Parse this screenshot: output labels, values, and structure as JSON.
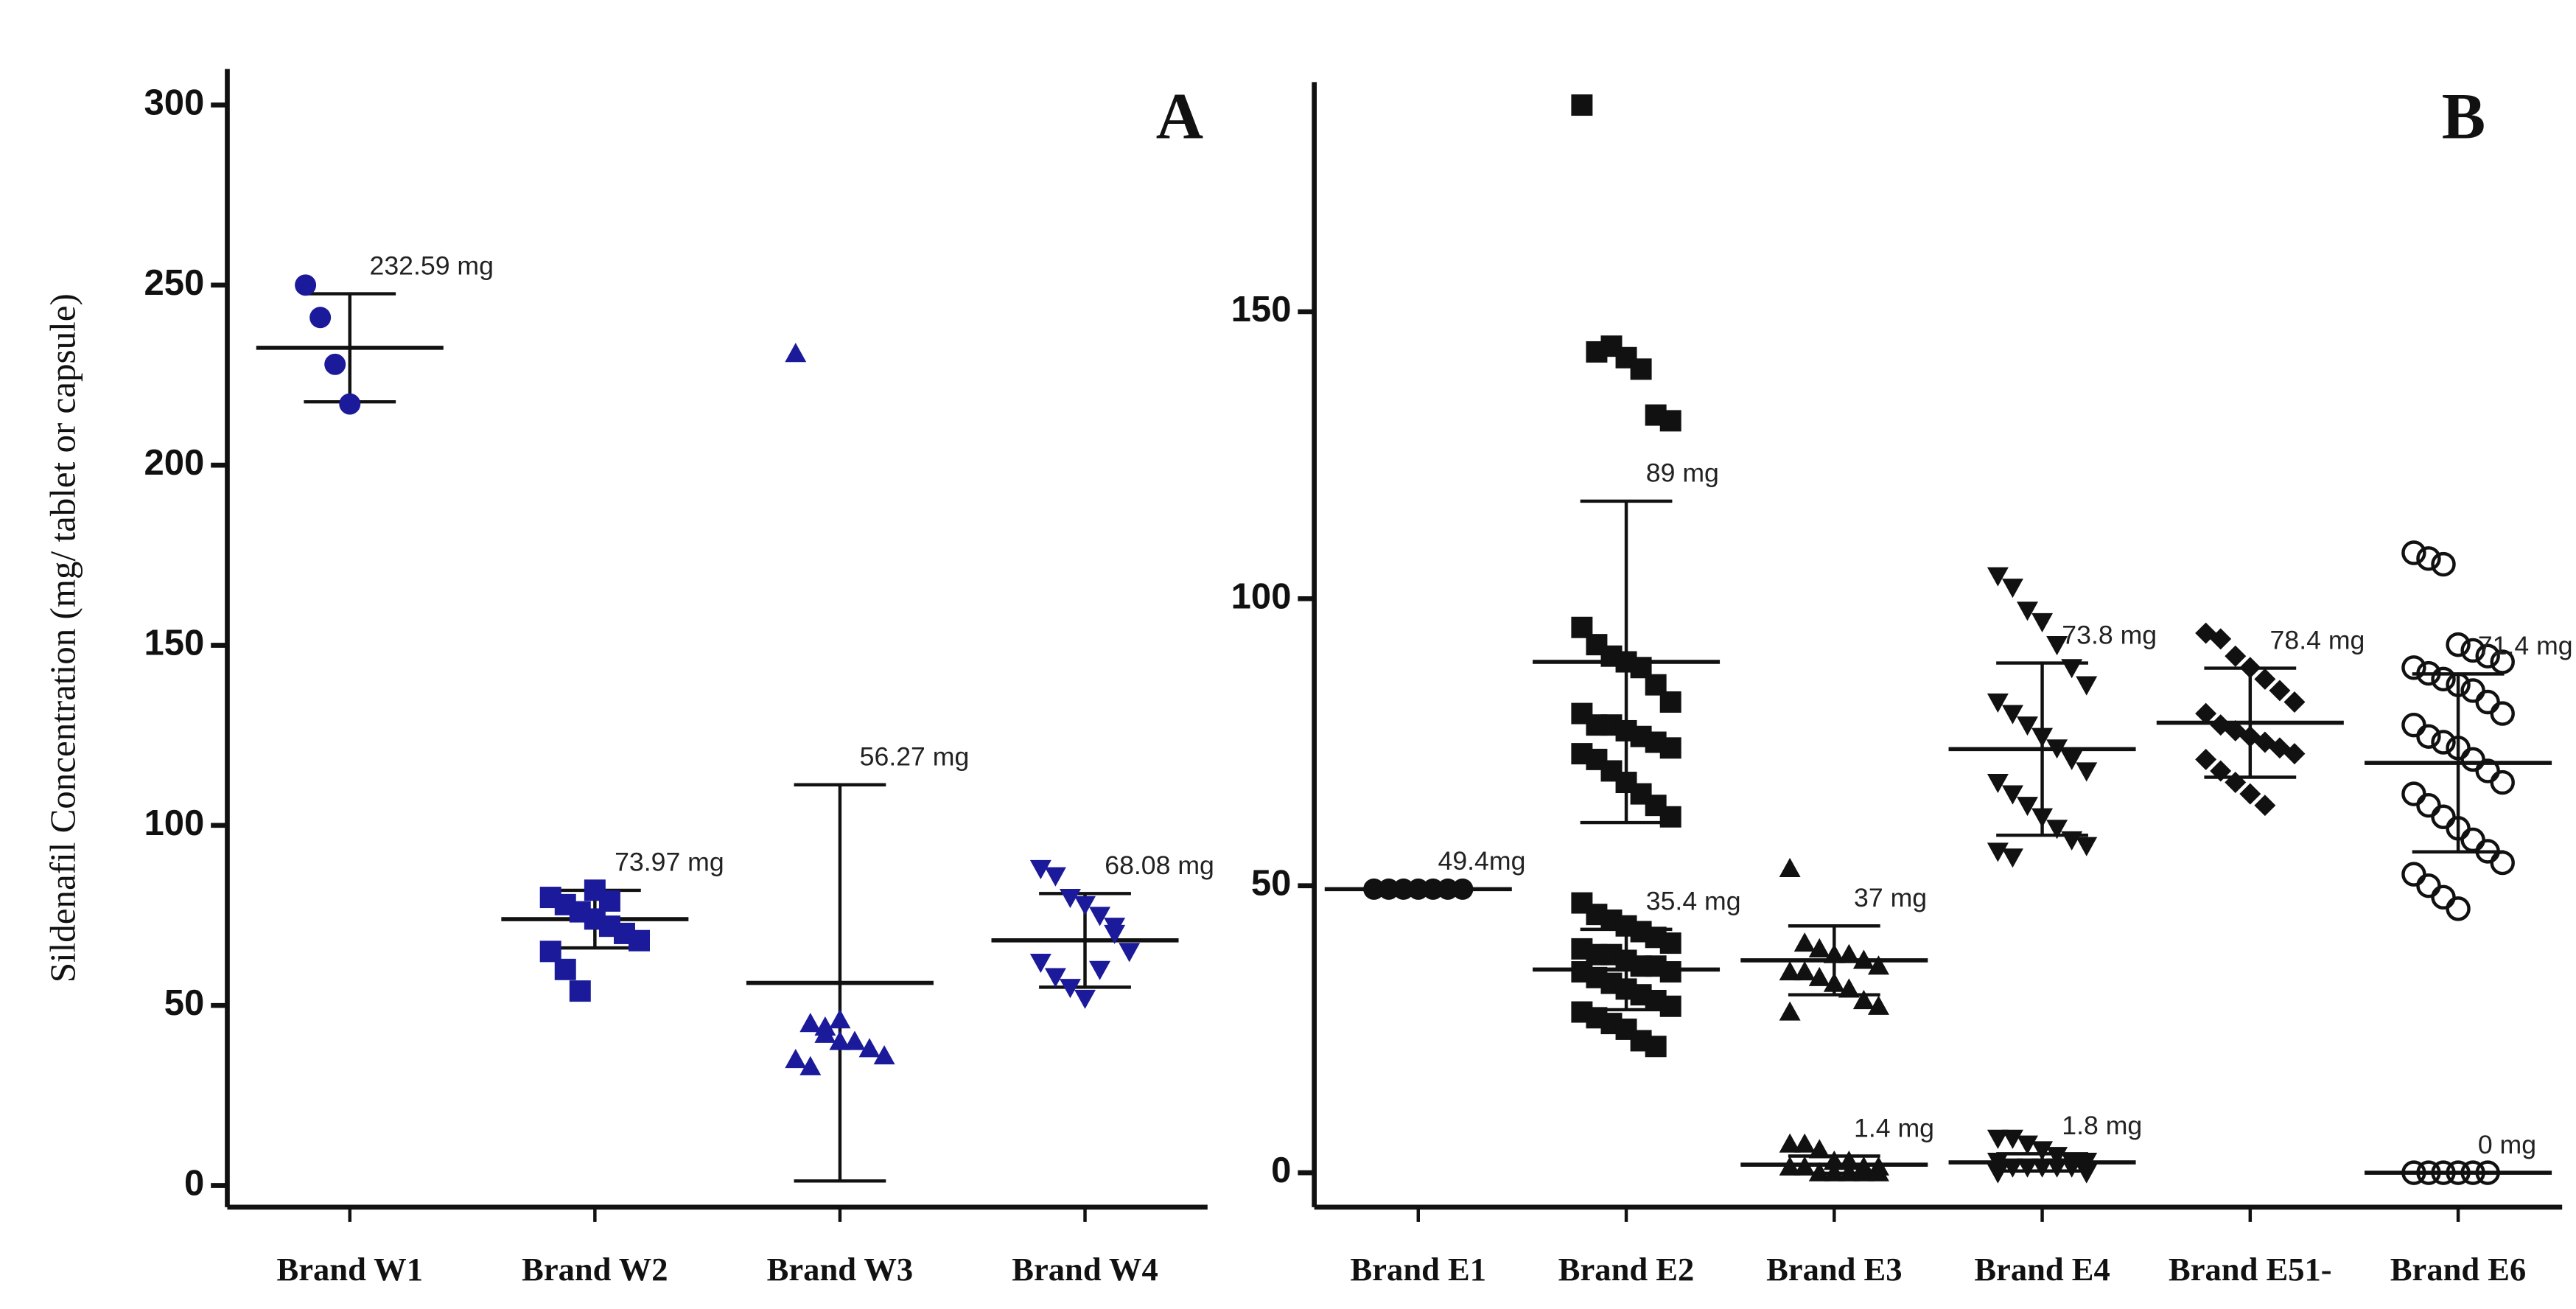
{
  "chart_data": [
    {
      "type": "dot",
      "title": "A",
      "ylabel": "Sildenafil Concentration (mg/ tablet or capsule)",
      "color": "#1a1a9a",
      "ylim": [
        -6,
        310
      ],
      "yticks": [
        0,
        50,
        100,
        150,
        200,
        250,
        300
      ],
      "categories": [
        "Brand W1",
        "Brand W2",
        "Brand W3",
        "Brand W4"
      ],
      "markers": [
        "circle",
        "square",
        "triangle-up",
        "triangle-down"
      ],
      "groups": [
        [
          {
            "points": [
              250,
              241,
              228,
              217
            ],
            "mean": 232.59,
            "sd": 15,
            "value_label": "232.59 mg"
          }
        ],
        [
          {
            "points": [
              80,
              78,
              76,
              74,
              72,
              70,
              68,
              65,
              60,
              54,
              82,
              79
            ],
            "mean": 73.97,
            "sd": 8,
            "value_label": "73.97 mg"
          }
        ],
        [
          {
            "points": [
              231,
              45,
              42,
              40,
              40,
              38,
              36,
              35,
              33,
              44,
              46
            ],
            "mean": 56.27,
            "sd": 55,
            "value_label": "56.27 mg"
          }
        ],
        [
          {
            "points": [
              88,
              86,
              80,
              78,
              75,
              70,
              65,
              62,
              58,
              55,
              52,
              60,
              72
            ],
            "mean": 68.08,
            "sd": 13,
            "value_label": "68.08 mg"
          }
        ]
      ]
    },
    {
      "type": "dot",
      "title": "B",
      "color": "#111111",
      "ylim": [
        -6,
        190
      ],
      "yticks": [
        0,
        50,
        100,
        150
      ],
      "categories": [
        "Brand E1",
        "Brand E2",
        "Brand E3",
        "Brand E4",
        "Brand E51-",
        "Brand E6"
      ],
      "markers": [
        "circle",
        "square",
        "triangle-up",
        "triangle-down",
        "diamond",
        "circle-open"
      ],
      "groups": [
        [
          {
            "points": [
              49.4,
              49.4,
              49.4,
              49.4,
              49.4,
              49.4,
              49.4
            ],
            "mean": 49.4,
            "sd": 0,
            "value_label": "49.4mg"
          }
        ],
        [
          {
            "points": [
              186,
              143,
              144,
              142,
              140,
              132,
              131,
              95,
              92,
              90,
              89,
              88,
              85,
              82,
              80,
              78,
              78,
              77,
              76,
              75,
              74,
              73,
              72,
              70,
              68,
              66,
              64,
              62
            ],
            "mean": 89,
            "sd": 28,
            "value_label": "89 mg"
          },
          {
            "points": [
              47,
              45,
              44,
              43,
              42,
              41,
              40,
              39,
              38,
              38,
              37,
              36,
              36,
              35,
              35,
              34,
              33,
              32,
              31,
              30,
              29,
              28,
              27,
              26,
              25,
              23,
              22
            ],
            "mean": 35.4,
            "sd": 7,
            "value_label": "35.4 mg"
          }
        ],
        [
          {
            "points": [
              53,
              40,
              39,
              38,
              38,
              37,
              36,
              35,
              35,
              34,
              33,
              32,
              30,
              29,
              28
            ],
            "mean": 37,
            "sd": 6,
            "value_label": "37 mg"
          },
          {
            "points": [
              5,
              5,
              4,
              2,
              2,
              1,
              1,
              1,
              1,
              0,
              0,
              0,
              0,
              0
            ],
            "mean": 1.4,
            "sd": 1.5,
            "value_label": "1.4 mg"
          }
        ],
        [
          {
            "points": [
              104,
              102,
              98,
              96,
              92,
              88,
              85,
              82,
              80,
              78,
              76,
              74,
              72,
              70,
              68,
              66,
              64,
              62,
              60,
              58,
              57,
              56,
              55
            ],
            "mean": 73.8,
            "sd": 15,
            "value_label": "73.8 mg"
          },
          {
            "points": [
              6,
              6,
              5,
              4,
              3,
              2,
              2,
              2,
              1,
              1,
              1,
              1,
              1,
              0,
              0
            ],
            "mean": 1.8,
            "sd": 1.5,
            "value_label": "1.8 mg"
          }
        ],
        [
          {
            "points": [
              94,
              93,
              90,
              88,
              86,
              84,
              82,
              80,
              78,
              77,
              76,
              75,
              74,
              73,
              72,
              70,
              68,
              66,
              64
            ],
            "mean": 78.4,
            "sd": 9.5,
            "value_label": "78.4 mg"
          }
        ],
        [
          {
            "points": [
              108,
              107,
              106,
              92,
              91,
              90,
              89,
              88,
              87,
              86,
              85,
              84,
              82,
              80,
              78,
              76,
              75,
              74,
              72,
              70,
              68,
              66,
              64,
              62,
              60,
              58,
              56,
              54,
              52,
              50,
              48,
              46
            ],
            "mean": 71.4,
            "sd": 15.5,
            "value_label": "71.4 mg"
          },
          {
            "points": [
              0,
              0,
              0,
              0,
              0,
              0
            ],
            "mean": 0,
            "sd": 0,
            "value_label": "0 mg"
          }
        ]
      ]
    }
  ]
}
